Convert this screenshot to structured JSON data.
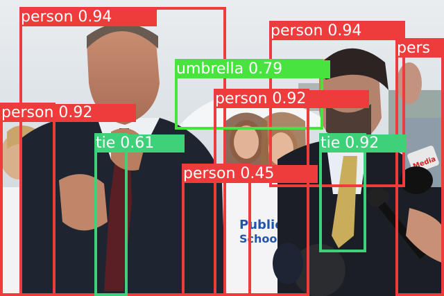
{
  "colors": {
    "person": "#ee3c3c",
    "tie": "#3fd07a",
    "umbrella": "#49e33f"
  },
  "detections": [
    {
      "label": "person 0.94",
      "cls": "person"
    },
    {
      "label": "person 0.94",
      "cls": "person"
    },
    {
      "label": "pers",
      "cls": "person"
    },
    {
      "label": "umbrella 0.79",
      "cls": "umbrella"
    },
    {
      "label": "person 0.92",
      "cls": "person"
    },
    {
      "label": "person 0.92",
      "cls": "person"
    },
    {
      "label": "tie 0.61",
      "cls": "tie"
    },
    {
      "label": "tie 0.92",
      "cls": "tie"
    },
    {
      "label": "person 0.45",
      "cls": "person"
    }
  ]
}
